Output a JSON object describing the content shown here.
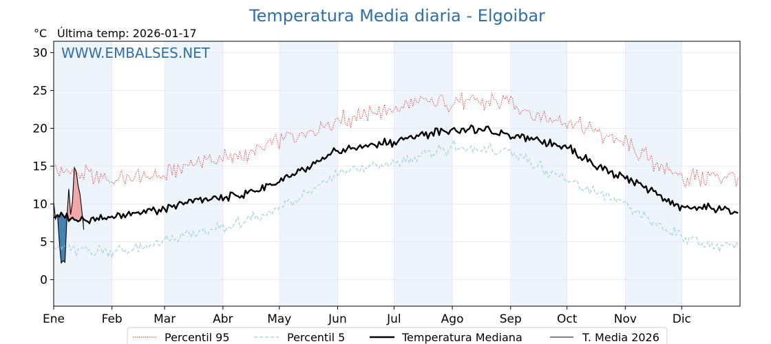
{
  "chart_data": {
    "type": "line",
    "title": "Temperatura Media diaria - Elgoibar",
    "unit_label": "°C",
    "last_temp_label": "Última temp: 2026-01-17",
    "watermark": "WWW.EMBALSES.NET",
    "ylim": [
      -3.5,
      31.5
    ],
    "yticks": [
      0,
      5,
      10,
      15,
      20,
      25,
      30
    ],
    "month_labels": [
      "Ene",
      "Feb",
      "Mar",
      "Abr",
      "May",
      "Jun",
      "Jul",
      "Ago",
      "Sep",
      "Oct",
      "Nov",
      "Dic"
    ],
    "month_start_days": [
      1,
      32,
      60,
      91,
      121,
      152,
      182,
      213,
      244,
      274,
      305,
      335
    ],
    "year_days": 365,
    "grid": true,
    "legend_position": "bottom",
    "colors": {
      "p95": "#e8231d",
      "p5": "#9fd0de",
      "median": "#000000",
      "current": "#000000",
      "above_fill": "#f4a6a6",
      "below_fill": "#3f7fb0",
      "band": "#eef4fb"
    },
    "series": [
      {
        "key": "p95",
        "name": "Percentil 95",
        "style": "dotted",
        "knots": [
          [
            1,
            14.5
          ],
          [
            15,
            14.0
          ],
          [
            32,
            13.2
          ],
          [
            45,
            13.5
          ],
          [
            60,
            13.8
          ],
          [
            75,
            15.5
          ],
          [
            91,
            16.0
          ],
          [
            105,
            16.5
          ],
          [
            121,
            18.5
          ],
          [
            135,
            19.5
          ],
          [
            152,
            21.0
          ],
          [
            170,
            22.0
          ],
          [
            182,
            22.5
          ],
          [
            197,
            23.5
          ],
          [
            213,
            23.5
          ],
          [
            228,
            23.5
          ],
          [
            244,
            23.5
          ],
          [
            259,
            21.5
          ],
          [
            274,
            21.0
          ],
          [
            290,
            19.5
          ],
          [
            305,
            18.0
          ],
          [
            320,
            15.5
          ],
          [
            335,
            13.5
          ],
          [
            350,
            13.5
          ],
          [
            365,
            13.8
          ]
        ],
        "amp": 1.2
      },
      {
        "key": "p5",
        "name": "Percentil 5",
        "style": "dashed",
        "knots": [
          [
            1,
            4.5
          ],
          [
            15,
            3.8
          ],
          [
            32,
            3.8
          ],
          [
            45,
            4.0
          ],
          [
            60,
            5.0
          ],
          [
            75,
            6.0
          ],
          [
            91,
            6.8
          ],
          [
            105,
            7.8
          ],
          [
            121,
            9.5
          ],
          [
            135,
            11.5
          ],
          [
            152,
            14.0
          ],
          [
            170,
            15.0
          ],
          [
            182,
            15.2
          ],
          [
            197,
            16.5
          ],
          [
            213,
            17.5
          ],
          [
            228,
            17.0
          ],
          [
            244,
            17.0
          ],
          [
            259,
            15.0
          ],
          [
            274,
            13.0
          ],
          [
            290,
            11.5
          ],
          [
            305,
            9.8
          ],
          [
            320,
            7.5
          ],
          [
            335,
            5.8
          ],
          [
            350,
            4.5
          ],
          [
            365,
            4.5
          ]
        ],
        "amp": 0.8
      },
      {
        "key": "median",
        "name": "Temperatura Mediana",
        "style": "thick",
        "knots": [
          [
            1,
            8.5
          ],
          [
            15,
            8.0
          ],
          [
            32,
            8.2
          ],
          [
            45,
            9.0
          ],
          [
            60,
            9.2
          ],
          [
            75,
            10.5
          ],
          [
            91,
            10.8
          ],
          [
            105,
            11.5
          ],
          [
            121,
            13.0
          ],
          [
            135,
            14.5
          ],
          [
            152,
            17.0
          ],
          [
            170,
            17.8
          ],
          [
            182,
            18.2
          ],
          [
            197,
            19.2
          ],
          [
            213,
            19.8
          ],
          [
            228,
            19.8
          ],
          [
            244,
            19.2
          ],
          [
            259,
            18.5
          ],
          [
            274,
            17.5
          ],
          [
            290,
            15.0
          ],
          [
            305,
            13.5
          ],
          [
            320,
            11.5
          ],
          [
            335,
            9.5
          ],
          [
            350,
            9.5
          ],
          [
            365,
            9.0
          ]
        ],
        "amp": 0.55
      },
      {
        "key": "current",
        "name": "T. Media 2026",
        "style": "thin",
        "values": [
          10.2,
          8.0,
          8.6,
          5.0,
          2.2,
          2.5,
          2.3,
          8.0,
          12.0,
          8.6,
          10.3,
          14.8,
          14.3,
          12.4,
          11.3,
          9.0,
          6.6
        ]
      }
    ]
  }
}
